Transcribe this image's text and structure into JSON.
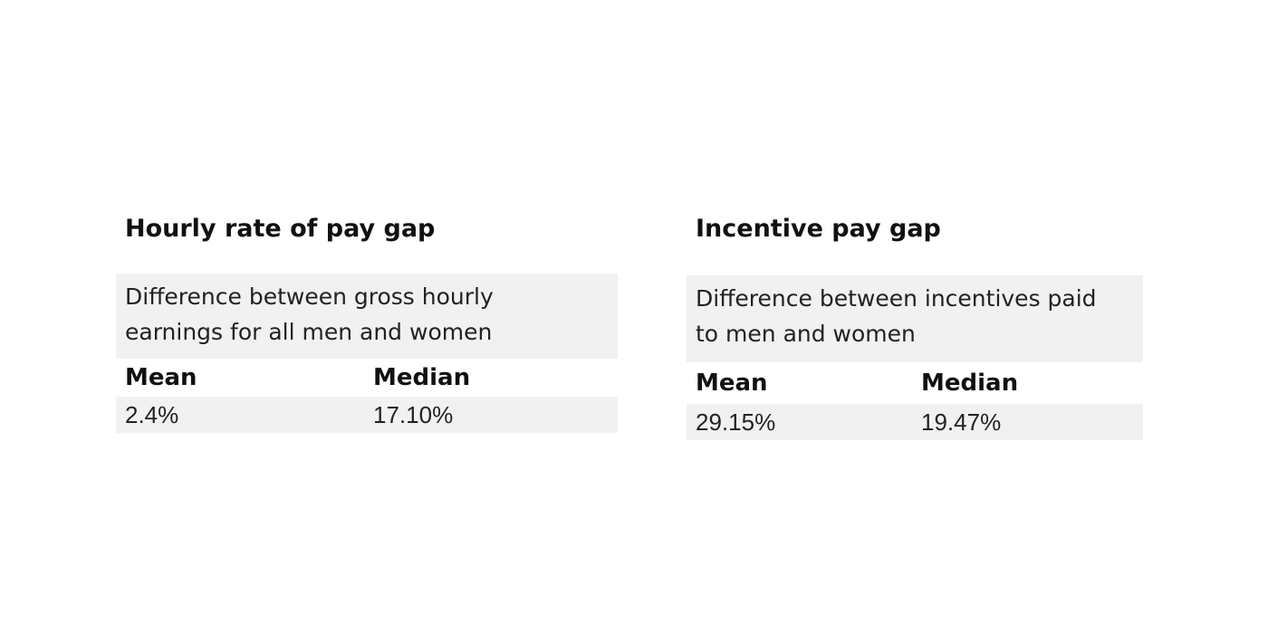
{
  "hourly": {
    "title": "Hourly rate of pay gap",
    "description_line1": "Difference between gross hourly",
    "description_line2": "earnings for all men and women",
    "mean_label": "Mean",
    "median_label": "Median",
    "mean_value": "2.4%",
    "median_value": "17.10%"
  },
  "incentive": {
    "title": "Incentive pay gap",
    "description_line1": "Difference between incentives paid",
    "description_line2": "to men and women",
    "mean_label": "Mean",
    "median_label": "Median",
    "mean_value": "29.15%",
    "median_value": "19.47%"
  },
  "colors": {
    "panel_background": "#f1f1f1",
    "text": "#111111",
    "page_background": "#ffffff"
  }
}
